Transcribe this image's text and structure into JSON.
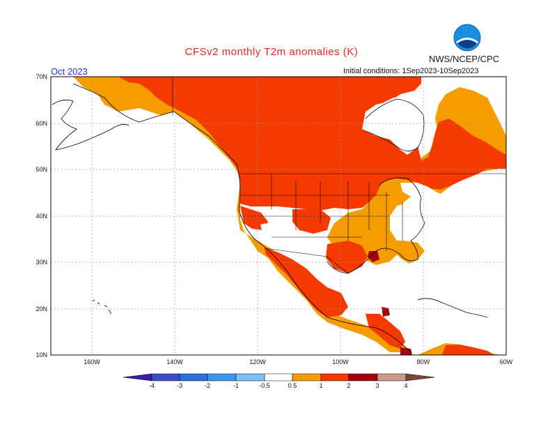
{
  "title": "CFSv2 monthly T2m anomalies (K)",
  "organization": "NWS/NCEP/CPC",
  "logo_text": "NOAA",
  "target_month": "Oct 2023",
  "initial_conditions": "Initial conditions: 1Sep2023-10Sep2023",
  "latitude_labels": [
    "70N",
    "60N",
    "50N",
    "40N",
    "30N",
    "20N",
    "10N"
  ],
  "longitude_labels": [
    "160W",
    "140W",
    "120W",
    "100W",
    "80W",
    "60W"
  ],
  "colorbar": {
    "tick_labels": [
      "-4",
      "-3",
      "-2",
      "-1",
      "-0.5",
      "0.5",
      "1",
      "2",
      "3",
      "4"
    ],
    "colors": [
      "#3a1fa5",
      "#3f4cc8",
      "#2f6fdb",
      "#3d97ee",
      "#7fc0f5",
      "#ffffff",
      "#f49c00",
      "#f53a00",
      "#a4000e",
      "#c79a8c",
      "#7a4636"
    ]
  },
  "anomaly_colors": {
    "weak_warm": "#f49c00",
    "warm": "#f53a00",
    "strong_warm": "#a4000e"
  }
}
